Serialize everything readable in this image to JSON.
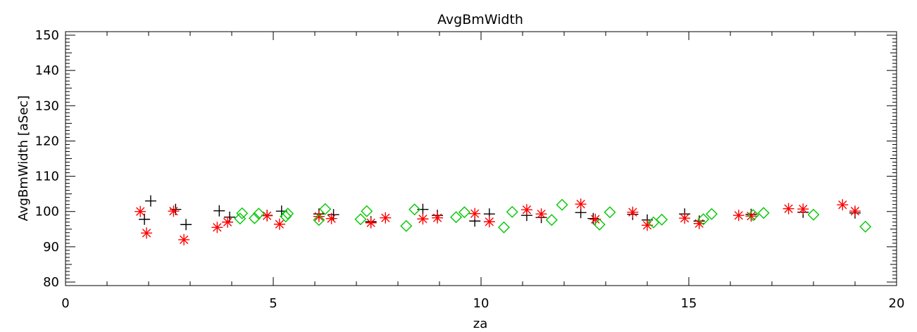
{
  "chart_data": {
    "type": "scatter",
    "title": "AvgBmWidth",
    "xlabel": "za",
    "ylabel": "AvgBmWidth [aSec]",
    "xlim": [
      0,
      20
    ],
    "ylim": [
      79,
      151
    ],
    "x_ticks": [
      0,
      5,
      10,
      15,
      20
    ],
    "y_ticks": [
      80,
      90,
      100,
      110,
      120,
      130,
      140,
      150
    ],
    "grid": false,
    "legend": "none",
    "series": [
      {
        "marker": "plus",
        "color": "#000000",
        "points": [
          [
            1.9,
            97.8
          ],
          [
            2.05,
            103.0
          ],
          [
            2.65,
            100.6
          ],
          [
            2.9,
            96.3
          ],
          [
            3.7,
            100.2
          ],
          [
            3.95,
            98.4
          ],
          [
            4.85,
            98.9
          ],
          [
            5.2,
            100.1
          ],
          [
            6.1,
            99.3
          ],
          [
            6.45,
            99.1
          ],
          [
            7.35,
            97.1
          ],
          [
            8.6,
            100.6
          ],
          [
            8.95,
            98.9
          ],
          [
            9.85,
            97.3
          ],
          [
            10.2,
            99.3
          ],
          [
            11.1,
            98.9
          ],
          [
            11.45,
            98.3
          ],
          [
            12.4,
            99.7
          ],
          [
            12.7,
            98.0
          ],
          [
            13.65,
            99.2
          ],
          [
            14.0,
            97.6
          ],
          [
            14.9,
            99.3
          ],
          [
            15.25,
            97.3
          ],
          [
            16.5,
            99.2
          ],
          [
            17.75,
            99.8
          ],
          [
            19.0,
            99.6
          ]
        ]
      },
      {
        "marker": "asterisk",
        "color": "#ff0000",
        "points": [
          [
            1.8,
            100.0
          ],
          [
            1.95,
            93.9
          ],
          [
            2.6,
            100.1
          ],
          [
            2.85,
            92.0
          ],
          [
            3.65,
            95.5
          ],
          [
            3.9,
            97.0
          ],
          [
            4.85,
            98.8
          ],
          [
            5.15,
            96.4
          ],
          [
            6.1,
            98.6
          ],
          [
            6.4,
            98.0
          ],
          [
            7.35,
            96.8
          ],
          [
            7.7,
            98.2
          ],
          [
            8.6,
            97.9
          ],
          [
            8.95,
            98.2
          ],
          [
            9.85,
            99.4
          ],
          [
            10.2,
            97.1
          ],
          [
            11.1,
            100.5
          ],
          [
            11.45,
            99.3
          ],
          [
            12.4,
            102.1
          ],
          [
            12.75,
            97.8
          ],
          [
            13.65,
            99.8
          ],
          [
            14.0,
            96.1
          ],
          [
            14.9,
            98.1
          ],
          [
            15.25,
            96.6
          ],
          [
            16.2,
            98.9
          ],
          [
            16.5,
            98.7
          ],
          [
            17.4,
            100.8
          ],
          [
            17.75,
            100.7
          ],
          [
            18.7,
            101.9
          ],
          [
            19.0,
            100.1
          ]
        ]
      },
      {
        "marker": "diamond",
        "color": "#00c800",
        "points": [
          [
            4.2,
            98.0
          ],
          [
            4.25,
            99.5
          ],
          [
            4.55,
            98.1
          ],
          [
            4.65,
            99.4
          ],
          [
            5.3,
            98.6
          ],
          [
            5.35,
            99.4
          ],
          [
            6.1,
            97.6
          ],
          [
            6.25,
            100.7
          ],
          [
            7.1,
            97.8
          ],
          [
            7.25,
            100.1
          ],
          [
            8.2,
            95.9
          ],
          [
            8.4,
            100.6
          ],
          [
            9.4,
            98.4
          ],
          [
            9.6,
            99.8
          ],
          [
            10.55,
            95.5
          ],
          [
            10.75,
            99.9
          ],
          [
            11.7,
            97.6
          ],
          [
            11.95,
            101.9
          ],
          [
            12.85,
            96.3
          ],
          [
            13.1,
            99.8
          ],
          [
            14.15,
            96.9
          ],
          [
            14.35,
            97.7
          ],
          [
            15.35,
            97.8
          ],
          [
            15.55,
            99.3
          ],
          [
            16.55,
            99.0
          ],
          [
            16.8,
            99.6
          ],
          [
            18.0,
            99.1
          ],
          [
            19.25,
            95.7
          ]
        ]
      }
    ]
  }
}
